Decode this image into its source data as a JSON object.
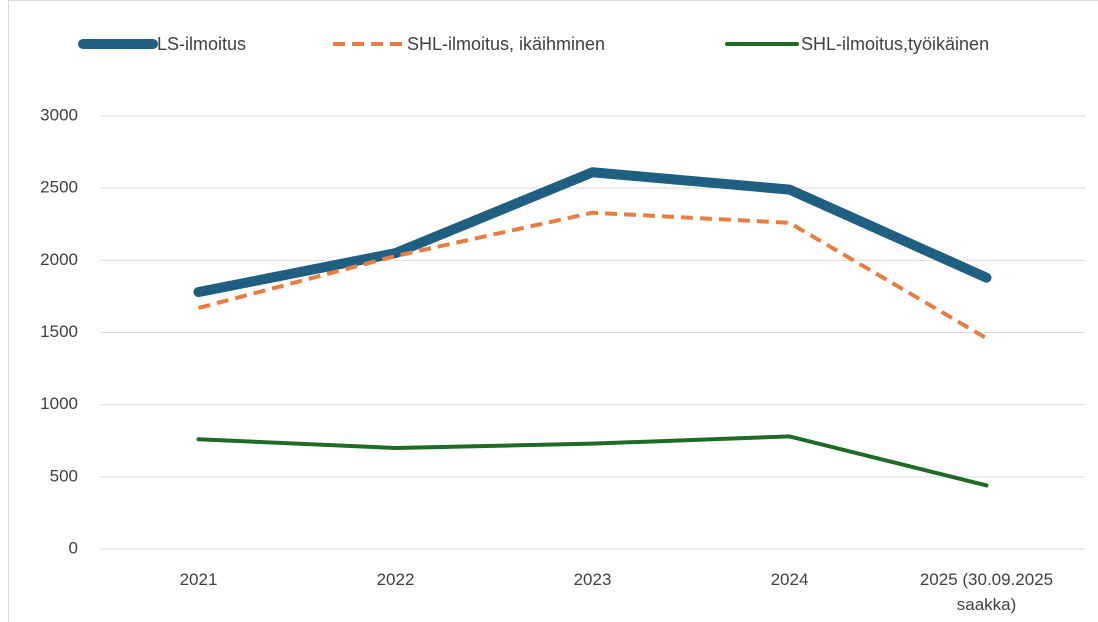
{
  "chart_data": {
    "type": "line",
    "categories": [
      "2021",
      "2022",
      "2023",
      "2024",
      "2025 (30.09.2025 saakka)"
    ],
    "series": [
      {
        "name": "LS-ilmoitus",
        "color": "#1f5f82",
        "width": 10,
        "dashed": false,
        "values": [
          1780,
          2050,
          2610,
          2490,
          1880
        ]
      },
      {
        "name": "SHL-ilmoitus, ikäihminen",
        "color": "#e97c3f",
        "width": 4,
        "dashed": true,
        "values": [
          1670,
          2030,
          2330,
          2260,
          1460
        ]
      },
      {
        "name": "SHL-ilmoitus,työikäinen",
        "color": "#1e6b23",
        "width": 4,
        "dashed": false,
        "values": [
          760,
          700,
          730,
          780,
          440
        ]
      }
    ],
    "ylim": [
      0,
      3000
    ],
    "yticks": [
      0,
      500,
      1000,
      1500,
      2000,
      2500,
      3000
    ],
    "grid": true,
    "legend": "top"
  }
}
